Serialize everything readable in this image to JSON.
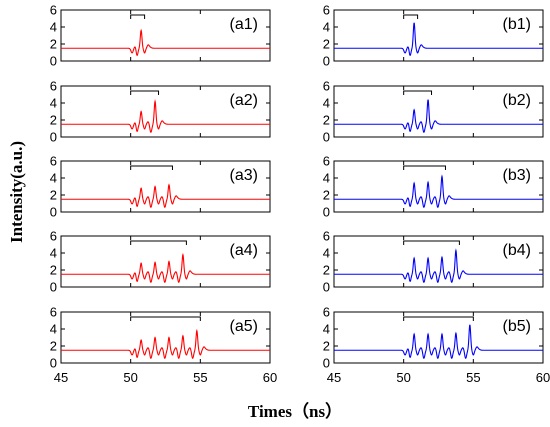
{
  "figure": {
    "ylabel": "Intensity(a.u.)",
    "xlabel": "Times（ns）"
  },
  "chart_data": [
    {
      "type": "line",
      "panel": "(a1)",
      "color": "#ff0000",
      "xlim": [
        45,
        60
      ],
      "ylim": [
        0,
        6
      ],
      "xticks": [],
      "yticks": [
        0,
        2,
        4,
        6
      ],
      "baseline": 1.5,
      "peaks": [
        3.6
      ],
      "gate": [
        50,
        51
      ]
    },
    {
      "type": "line",
      "panel": "(a2)",
      "color": "#ff0000",
      "xlim": [
        45,
        60
      ],
      "ylim": [
        0,
        6
      ],
      "xticks": [],
      "yticks": [
        0,
        2,
        4,
        6
      ],
      "baseline": 1.5,
      "peaks": [
        3.0,
        4.2
      ],
      "gate": [
        50,
        52
      ]
    },
    {
      "type": "line",
      "panel": "(a3)",
      "color": "#ff0000",
      "xlim": [
        45,
        60
      ],
      "ylim": [
        0,
        6
      ],
      "xticks": [],
      "yticks": [
        0,
        2,
        4,
        6
      ],
      "baseline": 1.5,
      "peaks": [
        2.8,
        3.0,
        3.2
      ],
      "gate": [
        50,
        53
      ]
    },
    {
      "type": "line",
      "panel": "(a4)",
      "color": "#ff0000",
      "xlim": [
        45,
        60
      ],
      "ylim": [
        0,
        6
      ],
      "xticks": [],
      "yticks": [
        0,
        2,
        4,
        6
      ],
      "baseline": 1.5,
      "peaks": [
        2.8,
        2.9,
        3.0,
        3.8
      ],
      "gate": [
        50,
        54
      ]
    },
    {
      "type": "line",
      "panel": "(a5)",
      "color": "#ff0000",
      "xlim": [
        45,
        60
      ],
      "ylim": [
        0,
        6
      ],
      "xticks": [
        45,
        50,
        55,
        60
      ],
      "yticks": [
        0,
        2,
        4,
        6
      ],
      "baseline": 1.5,
      "peaks": [
        2.7,
        3.0,
        3.0,
        3.2,
        3.8
      ],
      "gate": [
        50,
        55
      ]
    },
    {
      "type": "line",
      "panel": "(b1)",
      "color": "#0000ff",
      "xlim": [
        45,
        60
      ],
      "ylim": [
        0,
        6
      ],
      "xticks": [],
      "yticks": [
        0,
        2,
        4,
        6
      ],
      "baseline": 1.5,
      "peaks": [
        4.5
      ],
      "gate": [
        50,
        51
      ]
    },
    {
      "type": "line",
      "panel": "(b2)",
      "color": "#0000ff",
      "xlim": [
        45,
        60
      ],
      "ylim": [
        0,
        6
      ],
      "xticks": [],
      "yticks": [
        0,
        2,
        4,
        6
      ],
      "baseline": 1.5,
      "peaks": [
        3.2,
        4.4
      ],
      "gate": [
        50,
        52
      ]
    },
    {
      "type": "line",
      "panel": "(b3)",
      "color": "#0000ff",
      "xlim": [
        45,
        60
      ],
      "ylim": [
        0,
        6
      ],
      "xticks": [],
      "yticks": [
        0,
        2,
        4,
        6
      ],
      "baseline": 1.5,
      "peaks": [
        3.4,
        3.5,
        4.2
      ],
      "gate": [
        50,
        53
      ]
    },
    {
      "type": "line",
      "panel": "(b4)",
      "color": "#0000ff",
      "xlim": [
        45,
        60
      ],
      "ylim": [
        0,
        6
      ],
      "xticks": [],
      "yticks": [
        0,
        2,
        4,
        6
      ],
      "baseline": 1.5,
      "peaks": [
        3.4,
        3.4,
        3.5,
        4.3
      ],
      "gate": [
        50,
        54
      ]
    },
    {
      "type": "line",
      "panel": "(b5)",
      "color": "#0000ff",
      "xlim": [
        45,
        60
      ],
      "ylim": [
        0,
        6
      ],
      "xticks": [
        45,
        50,
        55,
        60
      ],
      "yticks": [
        0,
        2,
        4,
        6
      ],
      "baseline": 1.5,
      "peaks": [
        3.4,
        3.4,
        3.4,
        3.5,
        4.5
      ],
      "gate": [
        50,
        55
      ]
    }
  ]
}
